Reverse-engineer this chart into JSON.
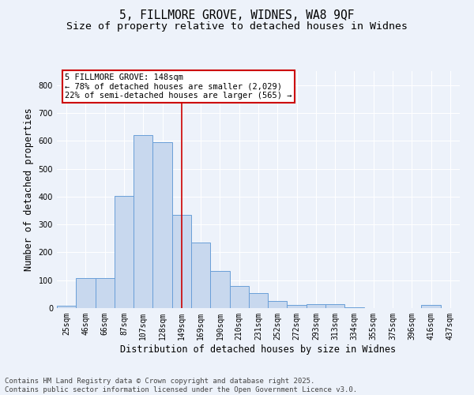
{
  "title_line1": "5, FILLMORE GROVE, WIDNES, WA8 9QF",
  "title_line2": "Size of property relative to detached houses in Widnes",
  "xlabel": "Distribution of detached houses by size in Widnes",
  "ylabel": "Number of detached properties",
  "bar_color": "#c8d8ee",
  "bar_edge_color": "#6a9fd8",
  "background_color": "#edf2fa",
  "grid_color": "#ffffff",
  "categories": [
    "25sqm",
    "46sqm",
    "66sqm",
    "87sqm",
    "107sqm",
    "128sqm",
    "149sqm",
    "169sqm",
    "190sqm",
    "210sqm",
    "231sqm",
    "252sqm",
    "272sqm",
    "293sqm",
    "313sqm",
    "334sqm",
    "355sqm",
    "375sqm",
    "396sqm",
    "416sqm",
    "437sqm"
  ],
  "values": [
    8,
    108,
    108,
    403,
    620,
    595,
    335,
    235,
    133,
    78,
    53,
    25,
    12,
    14,
    14,
    3,
    0,
    0,
    0,
    10,
    0
  ],
  "vline_color": "#cc0000",
  "vline_pos": 6,
  "annotation_text": "5 FILLMORE GROVE: 148sqm\n← 78% of detached houses are smaller (2,029)\n22% of semi-detached houses are larger (565) →",
  "annotation_box_color": "#cc0000",
  "ylim": [
    0,
    850
  ],
  "yticks": [
    0,
    100,
    200,
    300,
    400,
    500,
    600,
    700,
    800
  ],
  "footer_line1": "Contains HM Land Registry data © Crown copyright and database right 2025.",
  "footer_line2": "Contains public sector information licensed under the Open Government Licence v3.0.",
  "title_fontsize": 10.5,
  "subtitle_fontsize": 9.5,
  "axis_label_fontsize": 8.5,
  "tick_fontsize": 7,
  "footer_fontsize": 6.5,
  "annotation_fontsize": 7.5
}
